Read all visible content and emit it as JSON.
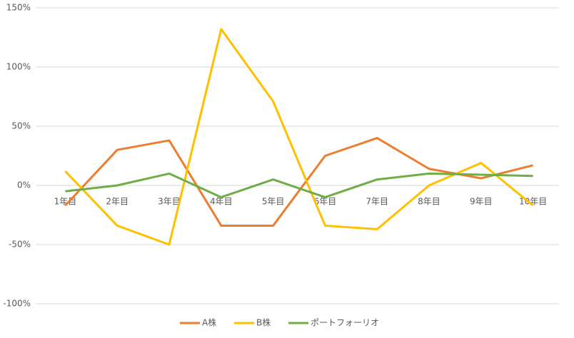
{
  "chart_data": {
    "type": "line",
    "categories": [
      "1年目",
      "2年目",
      "3年目",
      "4年目",
      "5年目",
      "6年目",
      "7年目",
      "8年目",
      "9年目",
      "10年目"
    ],
    "series": [
      {
        "name": "A株",
        "color": "#ed7d31",
        "values": [
          -17,
          30,
          38,
          -34,
          -34,
          25,
          40,
          14,
          6,
          17
        ]
      },
      {
        "name": "B株",
        "color": "#ffc000",
        "values": [
          12,
          -34,
          -50,
          132,
          71,
          -34,
          -37,
          0,
          19,
          -17
        ]
      },
      {
        "name": "ポートフォーリオ",
        "color": "#70ad47",
        "values": [
          -5,
          0,
          10,
          -10,
          5,
          -10,
          5,
          10,
          9,
          8
        ]
      }
    ],
    "ylim": [
      -100,
      150
    ],
    "yticks": [
      {
        "value": -100,
        "label": "-100%"
      },
      {
        "value": -50,
        "label": "-50%"
      },
      {
        "value": 0,
        "label": "0%"
      },
      {
        "value": 50,
        "label": "50%"
      },
      {
        "value": 100,
        "label": "100%"
      },
      {
        "value": 150,
        "label": "150%"
      }
    ],
    "grid": true,
    "legend": "bottom"
  }
}
